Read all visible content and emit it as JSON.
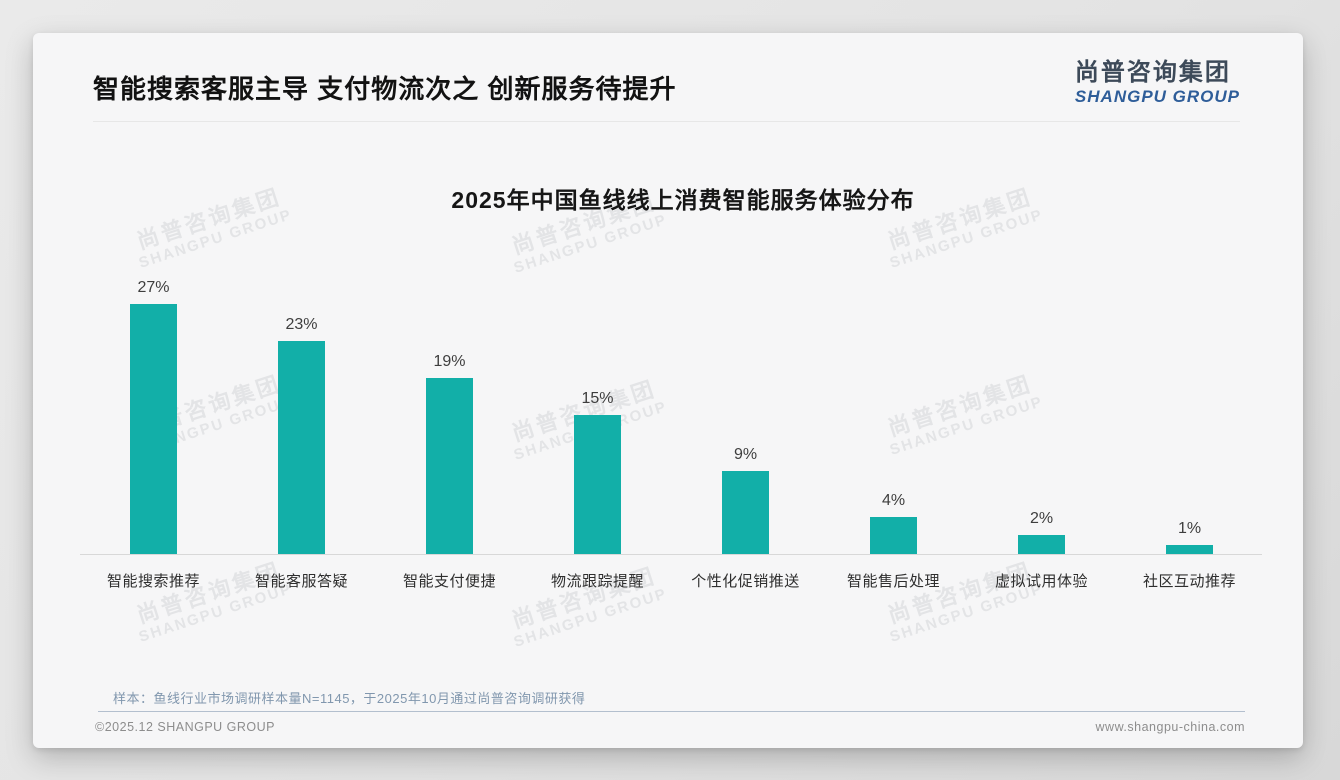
{
  "header": {
    "title": "智能搜索客服主导 支付物流次之 创新服务待提升",
    "logo_cn": "尚普咨询集团",
    "logo_en": "SHANGPU GROUP"
  },
  "watermark": {
    "line1": "尚普咨询集团",
    "line2": "SHANGPU GROUP"
  },
  "chart_data": {
    "type": "bar",
    "title": "2025年中国鱼线线上消费智能服务体验分布",
    "categories": [
      "智能搜索推荐",
      "智能客服答疑",
      "智能支付便捷",
      "物流跟踪提醒",
      "个性化促销推送",
      "智能售后处理",
      "虚拟试用体验",
      "社区互动推荐"
    ],
    "values": [
      27,
      23,
      19,
      15,
      9,
      4,
      2,
      1
    ],
    "value_labels": [
      "27%",
      "23%",
      "19%",
      "15%",
      "9%",
      "4%",
      "2%",
      "1%"
    ],
    "unit": "%",
    "bar_color": "#12afa8",
    "ylim": [
      0,
      27
    ],
    "grid": false,
    "legend": "none",
    "xlabel": "",
    "ylabel": ""
  },
  "note": "样本：鱼线行业市场调研样本量N=1145，于2025年10月通过尚普咨询调研获得",
  "footer": {
    "copyright": "©2025.12 SHANGPU GROUP",
    "website": "www.shangpu-china.com"
  }
}
